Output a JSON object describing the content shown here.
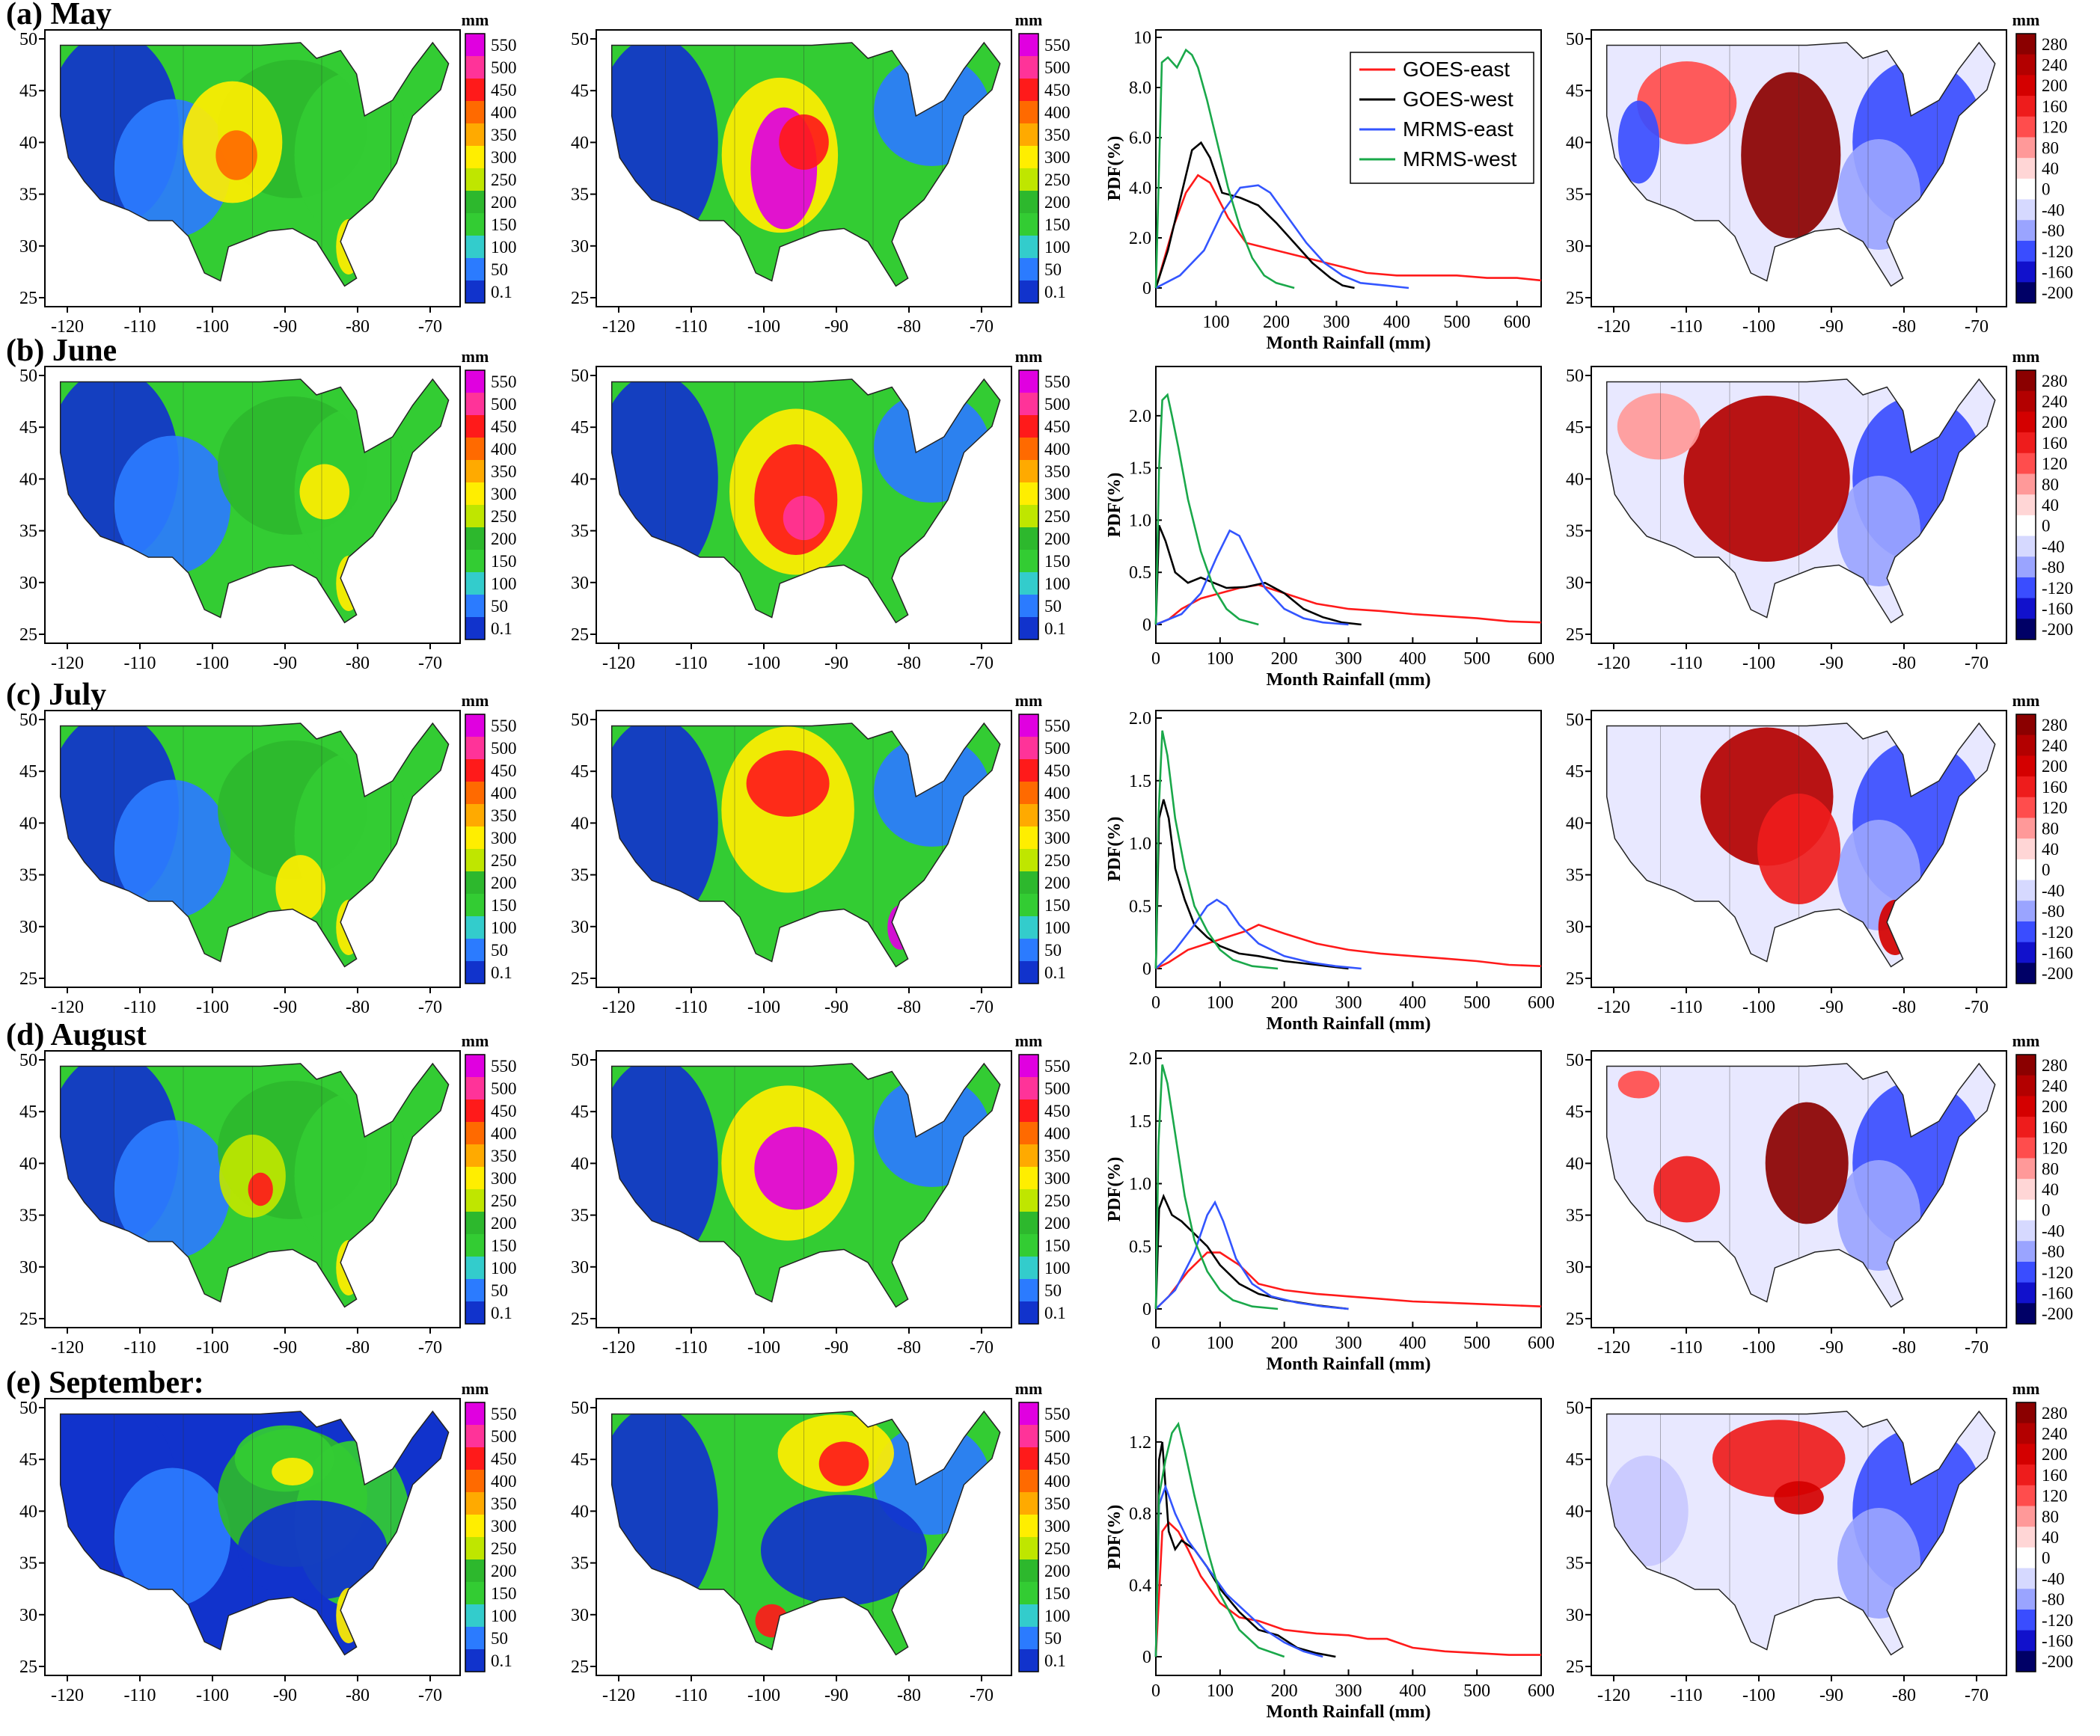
{
  "figure": {
    "row_labels": [
      "(a) May",
      "(b) June",
      "(c) July",
      "(d) August",
      "(e) September:"
    ],
    "map_lon_ticks": [
      "-120",
      "-110",
      "-100",
      "-90",
      "-80",
      "-70"
    ],
    "map_lat_ticks": [
      "50",
      "45",
      "40",
      "35",
      "30",
      "25"
    ]
  },
  "colorbars": {
    "precip": {
      "unit": "mm",
      "ticks": [
        "550",
        "500",
        "450",
        "400",
        "350",
        "300",
        "250",
        "200",
        "150",
        "100",
        "50",
        "0.1"
      ],
      "colors": [
        "#e000e0",
        "#ff3399",
        "#ff1a1a",
        "#ff6a00",
        "#ffaa00",
        "#ffee00",
        "#bfe600",
        "#2db82d",
        "#33cc33",
        "#33cccc",
        "#2b7bff",
        "#1133cc"
      ]
    },
    "diff": {
      "unit": "mm",
      "ticks": [
        "280",
        "240",
        "200",
        "160",
        "120",
        "80",
        "40",
        "0",
        "-40",
        "-80",
        "-120",
        "-160",
        "-200"
      ],
      "colors": [
        "#8b0000",
        "#b30000",
        "#d40000",
        "#ee1c1c",
        "#ff4d4d",
        "#ff9999",
        "#ffd6d6",
        "#ffffff",
        "#d6d9ff",
        "#9aa4ff",
        "#3a4dff",
        "#1111cc",
        "#000066"
      ]
    }
  },
  "chart_data": [
    {
      "type": "line",
      "panel": "(a) May PDF",
      "xlabel": "Month Rainfall (mm)",
      "ylabel": "PDF(%)",
      "xlim": [
        0,
        640
      ],
      "ylim": [
        0,
        10
      ],
      "x_ticks": [
        "100",
        "200",
        "300",
        "400",
        "500",
        "600"
      ],
      "y_ticks": [
        "0",
        "2.0",
        "4.0",
        "6.0",
        "8.0",
        "10"
      ],
      "legend": {
        "position": "top-right",
        "entries": [
          "GOES-east",
          "GOES-west",
          "MRMS-east",
          "MRMS-west"
        ]
      },
      "series": [
        {
          "name": "GOES-east",
          "color": "#ff1a1a",
          "x": [
            0,
            30,
            50,
            70,
            90,
            120,
            150,
            200,
            250,
            300,
            350,
            400,
            450,
            500,
            550,
            600,
            640
          ],
          "y": [
            0,
            2.5,
            3.8,
            4.5,
            4.2,
            2.8,
            1.8,
            1.5,
            1.2,
            0.9,
            0.6,
            0.5,
            0.5,
            0.5,
            0.4,
            0.4,
            0.3
          ]
        },
        {
          "name": "GOES-west",
          "color": "#000000",
          "x": [
            0,
            20,
            40,
            60,
            75,
            90,
            110,
            140,
            170,
            200,
            230,
            260,
            290,
            310,
            330
          ],
          "y": [
            0,
            1.5,
            3.5,
            5.5,
            5.8,
            5.2,
            3.8,
            3.6,
            3.3,
            2.6,
            1.8,
            1.0,
            0.4,
            0.1,
            0
          ]
        },
        {
          "name": "MRMS-east",
          "color": "#3355ff",
          "x": [
            0,
            40,
            80,
            110,
            140,
            170,
            190,
            220,
            250,
            280,
            310,
            340,
            380,
            420
          ],
          "y": [
            0,
            0.5,
            1.5,
            3.0,
            4.0,
            4.1,
            3.8,
            2.8,
            1.8,
            1.0,
            0.5,
            0.2,
            0.1,
            0
          ]
        },
        {
          "name": "MRMS-west",
          "color": "#1aa84a",
          "x": [
            0,
            10,
            20,
            35,
            50,
            60,
            70,
            85,
            100,
            120,
            140,
            160,
            180,
            200,
            230
          ],
          "y": [
            0,
            9.0,
            9.2,
            8.8,
            9.5,
            9.3,
            8.8,
            7.5,
            6.0,
            4.0,
            2.4,
            1.2,
            0.5,
            0.2,
            0
          ]
        }
      ]
    },
    {
      "type": "line",
      "panel": "(b) June PDF",
      "xlabel": "Month Rainfall (mm)",
      "ylabel": "PDF(%)",
      "xlim": [
        0,
        600
      ],
      "ylim": [
        0,
        2.4
      ],
      "x_ticks": [
        "0",
        "100",
        "200",
        "300",
        "400",
        "500",
        "600"
      ],
      "y_ticks": [
        "0",
        "0.5",
        "1.0",
        "1.5",
        "2.0"
      ],
      "series": [
        {
          "name": "GOES-east",
          "color": "#ff1a1a",
          "x": [
            0,
            20,
            40,
            70,
            100,
            130,
            160,
            200,
            250,
            300,
            350,
            400,
            450,
            500,
            550,
            600
          ],
          "y": [
            0,
            0.05,
            0.15,
            0.25,
            0.3,
            0.35,
            0.38,
            0.3,
            0.2,
            0.15,
            0.13,
            0.1,
            0.08,
            0.06,
            0.03,
            0.02
          ]
        },
        {
          "name": "GOES-west",
          "color": "#000000",
          "x": [
            0,
            5,
            15,
            30,
            50,
            70,
            90,
            110,
            140,
            170,
            200,
            230,
            260,
            290,
            320
          ],
          "y": [
            0,
            0.95,
            0.8,
            0.5,
            0.4,
            0.45,
            0.4,
            0.35,
            0.36,
            0.4,
            0.3,
            0.15,
            0.07,
            0.02,
            0
          ]
        },
        {
          "name": "MRMS-east",
          "color": "#3355ff",
          "x": [
            0,
            40,
            70,
            95,
            115,
            130,
            150,
            170,
            200,
            230,
            260,
            300
          ],
          "y": [
            0,
            0.1,
            0.3,
            0.65,
            0.9,
            0.85,
            0.6,
            0.35,
            0.15,
            0.06,
            0.02,
            0
          ]
        },
        {
          "name": "MRMS-west",
          "color": "#1aa84a",
          "x": [
            0,
            5,
            10,
            18,
            25,
            35,
            50,
            70,
            90,
            110,
            130,
            160
          ],
          "y": [
            0,
            1.5,
            2.15,
            2.2,
            2.0,
            1.7,
            1.2,
            0.7,
            0.35,
            0.15,
            0.05,
            0
          ]
        }
      ]
    },
    {
      "type": "line",
      "panel": "(c) July PDF",
      "xlabel": "Month Rainfall (mm)",
      "ylabel": "PDF(%)",
      "xlim": [
        0,
        600
      ],
      "ylim": [
        0,
        2.0
      ],
      "x_ticks": [
        "0",
        "100",
        "200",
        "300",
        "400",
        "500",
        "600"
      ],
      "y_ticks": [
        "0",
        "0.5",
        "1.0",
        "1.5",
        "2.0"
      ],
      "series": [
        {
          "name": "GOES-east",
          "color": "#ff1a1a",
          "x": [
            0,
            20,
            50,
            80,
            110,
            140,
            160,
            200,
            250,
            300,
            350,
            400,
            450,
            500,
            550,
            600
          ],
          "y": [
            0,
            0.05,
            0.15,
            0.2,
            0.25,
            0.3,
            0.35,
            0.28,
            0.2,
            0.15,
            0.12,
            0.1,
            0.08,
            0.06,
            0.03,
            0.02
          ]
        },
        {
          "name": "GOES-west",
          "color": "#000000",
          "x": [
            0,
            5,
            12,
            20,
            30,
            45,
            60,
            80,
            100,
            130,
            160,
            200,
            250,
            300
          ],
          "y": [
            0,
            1.2,
            1.35,
            1.2,
            0.8,
            0.55,
            0.35,
            0.25,
            0.18,
            0.12,
            0.1,
            0.06,
            0.03,
            0
          ]
        },
        {
          "name": "MRMS-east",
          "color": "#3355ff",
          "x": [
            0,
            30,
            60,
            80,
            95,
            110,
            130,
            160,
            200,
            240,
            280,
            320
          ],
          "y": [
            0,
            0.15,
            0.35,
            0.5,
            0.55,
            0.5,
            0.35,
            0.2,
            0.1,
            0.05,
            0.02,
            0
          ]
        },
        {
          "name": "MRMS-west",
          "color": "#1aa84a",
          "x": [
            0,
            4,
            10,
            18,
            30,
            45,
            60,
            80,
            100,
            120,
            150,
            190
          ],
          "y": [
            0,
            1.2,
            1.9,
            1.7,
            1.2,
            0.8,
            0.5,
            0.3,
            0.15,
            0.07,
            0.02,
            0
          ]
        }
      ]
    },
    {
      "type": "line",
      "panel": "(d) August PDF",
      "xlabel": "Month Rainfall (mm)",
      "ylabel": "PDF(%)",
      "xlim": [
        0,
        600
      ],
      "ylim": [
        0,
        2.0
      ],
      "x_ticks": [
        "0",
        "100",
        "200",
        "300",
        "400",
        "500",
        "600"
      ],
      "y_ticks": [
        "0",
        "0.5",
        "1.0",
        "1.5",
        "2.0"
      ],
      "series": [
        {
          "name": "GOES-east",
          "color": "#ff1a1a",
          "x": [
            0,
            20,
            50,
            80,
            100,
            130,
            160,
            200,
            250,
            300,
            350,
            400,
            450,
            500,
            550,
            600
          ],
          "y": [
            0,
            0.1,
            0.3,
            0.45,
            0.45,
            0.35,
            0.2,
            0.15,
            0.12,
            0.1,
            0.08,
            0.06,
            0.05,
            0.04,
            0.03,
            0.02
          ]
        },
        {
          "name": "GOES-west",
          "color": "#000000",
          "x": [
            0,
            5,
            12,
            25,
            40,
            60,
            80,
            100,
            130,
            160,
            200,
            250,
            300
          ],
          "y": [
            0,
            0.8,
            0.9,
            0.75,
            0.7,
            0.6,
            0.5,
            0.35,
            0.2,
            0.12,
            0.07,
            0.03,
            0
          ]
        },
        {
          "name": "MRMS-east",
          "color": "#3355ff",
          "x": [
            0,
            30,
            60,
            80,
            92,
            105,
            125,
            150,
            180,
            220,
            260,
            300
          ],
          "y": [
            0,
            0.15,
            0.45,
            0.75,
            0.85,
            0.7,
            0.4,
            0.2,
            0.1,
            0.05,
            0.02,
            0
          ]
        },
        {
          "name": "MRMS-west",
          "color": "#1aa84a",
          "x": [
            0,
            4,
            10,
            18,
            30,
            45,
            60,
            80,
            100,
            120,
            150,
            190
          ],
          "y": [
            0,
            1.3,
            1.95,
            1.8,
            1.4,
            0.9,
            0.55,
            0.3,
            0.15,
            0.07,
            0.02,
            0
          ]
        }
      ]
    },
    {
      "type": "line",
      "panel": "(e) September PDF",
      "xlabel": "Month Rainfall (mm)",
      "ylabel": "PDF(%)",
      "xlim": [
        0,
        600
      ],
      "ylim": [
        0,
        1.4
      ],
      "x_ticks": [
        "0",
        "100",
        "200",
        "300",
        "400",
        "500",
        "600"
      ],
      "y_ticks": [
        "0",
        "0.4",
        "0.8",
        "1.2"
      ],
      "series": [
        {
          "name": "GOES-east",
          "color": "#ff1a1a",
          "x": [
            0,
            10,
            20,
            35,
            50,
            70,
            100,
            130,
            160,
            200,
            250,
            300,
            330,
            360,
            400,
            450,
            500,
            550,
            600
          ],
          "y": [
            0,
            0.7,
            0.75,
            0.7,
            0.6,
            0.45,
            0.3,
            0.22,
            0.2,
            0.15,
            0.13,
            0.12,
            0.1,
            0.1,
            0.05,
            0.03,
            0.02,
            0.01,
            0.01
          ]
        },
        {
          "name": "GOES-west",
          "color": "#000000",
          "x": [
            0,
            5,
            10,
            20,
            30,
            40,
            60,
            80,
            100,
            130,
            160,
            190,
            220,
            250,
            280
          ],
          "y": [
            0,
            1.1,
            1.2,
            0.7,
            0.6,
            0.65,
            0.6,
            0.5,
            0.38,
            0.25,
            0.15,
            0.12,
            0.05,
            0.02,
            0
          ]
        },
        {
          "name": "MRMS-east",
          "color": "#3355ff",
          "x": [
            0,
            5,
            15,
            30,
            50,
            80,
            110,
            140,
            170,
            200,
            230,
            260
          ],
          "y": [
            0,
            0.85,
            0.95,
            0.8,
            0.65,
            0.5,
            0.35,
            0.25,
            0.15,
            0.08,
            0.03,
            0
          ]
        },
        {
          "name": "MRMS-west",
          "color": "#1aa84a",
          "x": [
            0,
            5,
            15,
            25,
            35,
            45,
            60,
            80,
            100,
            130,
            160,
            200
          ],
          "y": [
            0,
            0.9,
            1.1,
            1.25,
            1.3,
            1.15,
            0.9,
            0.6,
            0.35,
            0.15,
            0.05,
            0
          ]
        }
      ]
    }
  ]
}
